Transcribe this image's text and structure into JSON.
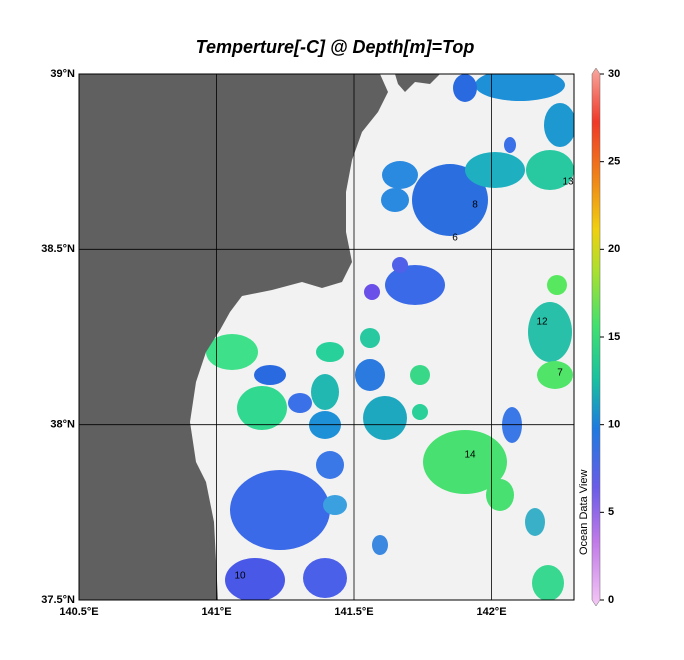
{
  "map": {
    "title": "Temperture[-C] @ Depth[m]=Top",
    "xlim": [
      140.5,
      142.3
    ],
    "ylim": [
      37.5,
      39
    ],
    "xticks": [
      {
        "value": 140.5,
        "label": "140.5°E"
      },
      {
        "value": 141,
        "label": "141°E"
      },
      {
        "value": 141.5,
        "label": "141.5°E"
      },
      {
        "value": 142,
        "label": "142°E"
      }
    ],
    "yticks": [
      {
        "value": 37.5,
        "label": "37.5°N"
      },
      {
        "value": 38,
        "label": "38°N"
      },
      {
        "value": 38.5,
        "label": "38.5°N"
      },
      {
        "value": 39,
        "label": "39°N"
      }
    ],
    "grid": true,
    "colorbar": {
      "lim": [
        0,
        30
      ],
      "ticks": [
        0,
        5,
        10,
        15,
        20,
        25,
        30
      ]
    },
    "contour_labels": [
      14,
      10,
      8,
      13,
      12,
      7,
      6
    ],
    "watermark": "Ocean Data View"
  }
}
